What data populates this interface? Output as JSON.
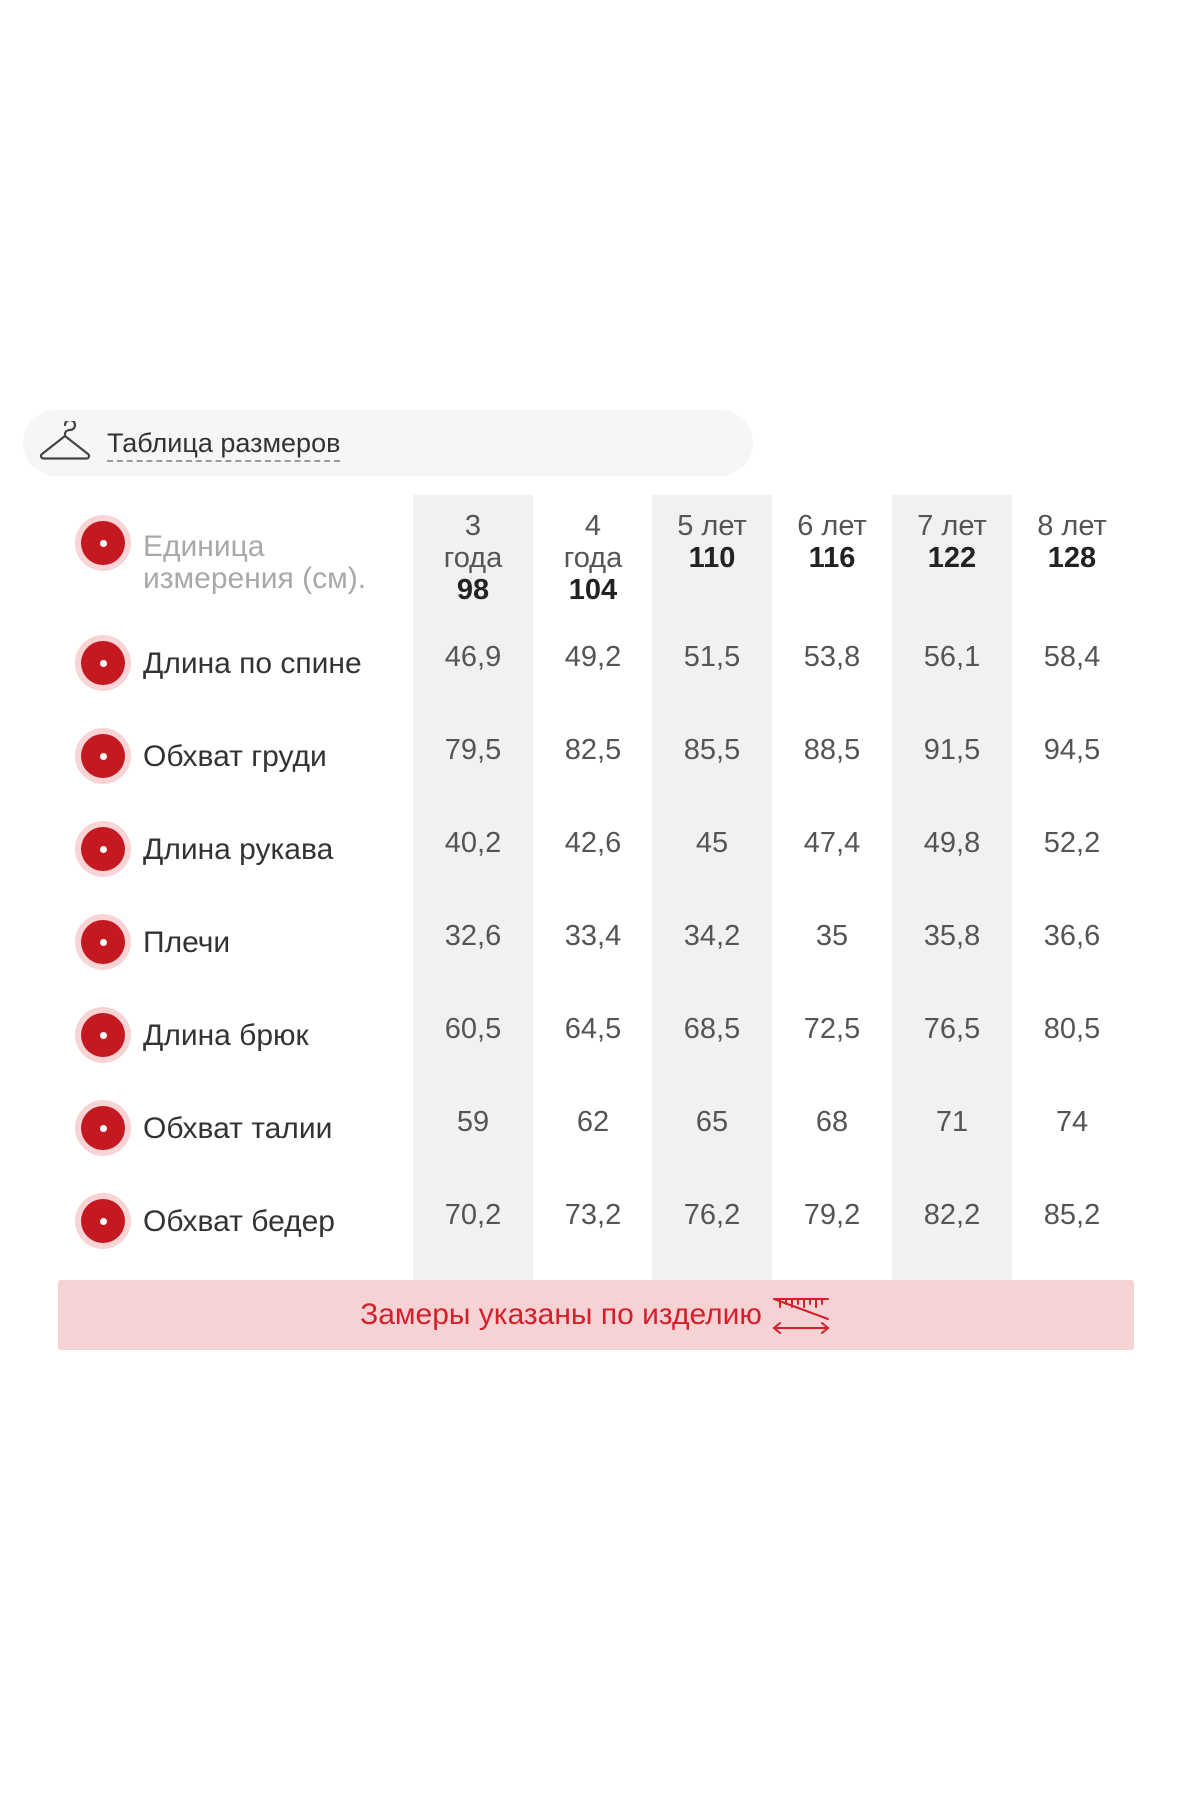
{
  "header": {
    "icon": "hanger-icon",
    "title": "Таблица размеров"
  },
  "colors": {
    "accent": "#c41920",
    "accent_light": "#f8d4d6",
    "note_bg": "#f7d2d5",
    "note_text": "#d3212b",
    "shaded_column": "#f1f1f2"
  },
  "table": {
    "unit_label": "Единица измерения (см).",
    "columns": [
      {
        "age": "3 года",
        "size": "98"
      },
      {
        "age": "4 года",
        "size": "104"
      },
      {
        "age": "5 лет",
        "size": "110"
      },
      {
        "age": "6 лет",
        "size": "116"
      },
      {
        "age": "7 лет",
        "size": "122"
      },
      {
        "age": "8 лет",
        "size": "128"
      }
    ],
    "rows": [
      {
        "label": "Длина по спине",
        "values": [
          "46,9",
          "49,2",
          "51,5",
          "53,8",
          "56,1",
          "58,4"
        ]
      },
      {
        "label": "Обхват груди",
        "values": [
          "79,5",
          "82,5",
          "85,5",
          "88,5",
          "91,5",
          "94,5"
        ]
      },
      {
        "label": "Длина рукава",
        "values": [
          "40,2",
          "42,6",
          "45",
          "47,4",
          "49,8",
          "52,2"
        ]
      },
      {
        "label": "Плечи",
        "values": [
          "32,6",
          "33,4",
          "34,2",
          "35",
          "35,8",
          "36,6"
        ]
      },
      {
        "label": "Длина брюк",
        "values": [
          "60,5",
          "64,5",
          "68,5",
          "72,5",
          "76,5",
          "80,5"
        ]
      },
      {
        "label": "Обхват талии",
        "values": [
          "59",
          "62",
          "65",
          "68",
          "71",
          "74"
        ]
      },
      {
        "label": "Обхват бедер",
        "values": [
          "70,2",
          "73,2",
          "76,2",
          "79,2",
          "82,2",
          "85,2"
        ]
      }
    ]
  },
  "note": {
    "text": "Замеры указаны по изделию",
    "icon": "ruler-icon"
  }
}
